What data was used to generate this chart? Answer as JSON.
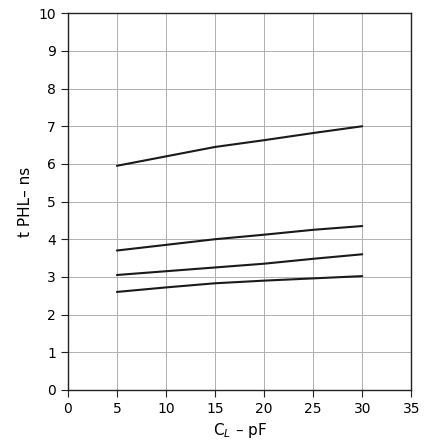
{
  "lines": [
    {
      "x": [
        5,
        10,
        15,
        20,
        25,
        30
      ],
      "y": [
        5.95,
        6.2,
        6.45,
        6.63,
        6.82,
        7.0
      ],
      "color": "#1a1a1a",
      "linewidth": 1.5
    },
    {
      "x": [
        5,
        10,
        15,
        20,
        25,
        30
      ],
      "y": [
        3.7,
        3.85,
        4.0,
        4.12,
        4.25,
        4.35
      ],
      "color": "#1a1a1a",
      "linewidth": 1.5
    },
    {
      "x": [
        5,
        10,
        15,
        20,
        25,
        30
      ],
      "y": [
        3.05,
        3.15,
        3.25,
        3.35,
        3.48,
        3.6
      ],
      "color": "#1a1a1a",
      "linewidth": 1.5
    },
    {
      "x": [
        5,
        10,
        15,
        20,
        25,
        30
      ],
      "y": [
        2.6,
        2.72,
        2.83,
        2.9,
        2.96,
        3.02
      ],
      "color": "#1a1a1a",
      "linewidth": 1.5
    }
  ],
  "xlabel": "C$_L$ – pF",
  "ylabel": "t PHL– ns",
  "xlim": [
    0,
    35
  ],
  "ylim": [
    0,
    10
  ],
  "xticks": [
    0,
    5,
    10,
    15,
    20,
    25,
    30,
    35
  ],
  "yticks": [
    0,
    1,
    2,
    3,
    4,
    5,
    6,
    7,
    8,
    9,
    10
  ],
  "grid_color": "#b0b0b0",
  "background_color": "#ffffff",
  "spine_color": "#222222",
  "xlabel_fontsize": 11,
  "ylabel_fontsize": 11,
  "tick_fontsize": 10
}
